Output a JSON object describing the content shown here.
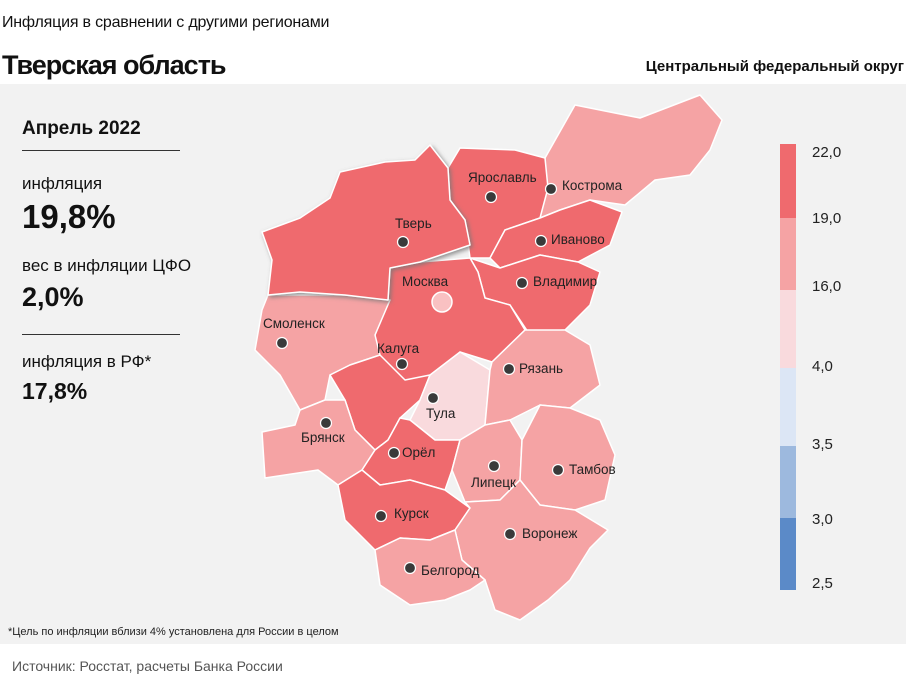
{
  "header": {
    "supertitle": "Инфляция  в сравнении  с другими регионами",
    "title": "Тверская область",
    "region_caption": "Центральный федеральный округ"
  },
  "info": {
    "period": "Апрель 2022",
    "inflation_label": "инфляция",
    "inflation_value": "19,8%",
    "weight_label": "вес в инфляции  ЦФО",
    "weight_value": "2,0%",
    "rf_label": "инфляция  в РФ*",
    "rf_value": "17,8%"
  },
  "map": {
    "selected_region": "Тверь",
    "cities": [
      {
        "name": "Тверь",
        "class": "19.0-22.0"
      },
      {
        "name": "Ярославль",
        "class": "19.0-22.0"
      },
      {
        "name": "Кострома",
        "class": "16.0-19.0"
      },
      {
        "name": "Иваново",
        "class": "19.0-22.0"
      },
      {
        "name": "Владимир",
        "class": "19.0-22.0"
      },
      {
        "name": "Москва",
        "class": "19.0-22.0"
      },
      {
        "name": "Смоленск",
        "class": "16.0-19.0"
      },
      {
        "name": "Калуга",
        "class": "19.0-22.0"
      },
      {
        "name": "Рязань",
        "class": "16.0-19.0"
      },
      {
        "name": "Тула",
        "class": "4.0-16.0"
      },
      {
        "name": "Брянск",
        "class": "16.0-19.0"
      },
      {
        "name": "Орёл",
        "class": "19.0-22.0"
      },
      {
        "name": "Липецк",
        "class": "16.0-19.0"
      },
      {
        "name": "Тамбов",
        "class": "16.0-19.0"
      },
      {
        "name": "Курск",
        "class": "19.0-22.0"
      },
      {
        "name": "Воронеж",
        "class": "16.0-19.0"
      },
      {
        "name": "Белгород",
        "class": "16.0-19.0"
      }
    ]
  },
  "legend": {
    "ticks": [
      "22,0",
      "19,0",
      "16,0",
      "4,0",
      "3,5",
      "3,0",
      "2,5"
    ],
    "colors": [
      "#ef6a6e",
      "#f5a3a4",
      "#f9dadd",
      "#dce6f5",
      "#9db9de",
      "#5b8ac8"
    ]
  },
  "footer": {
    "note": "*Цель по инфляции вблизи 4% установлена для России в целом",
    "source": "Источник: Росстат, расчеты Банка России"
  }
}
